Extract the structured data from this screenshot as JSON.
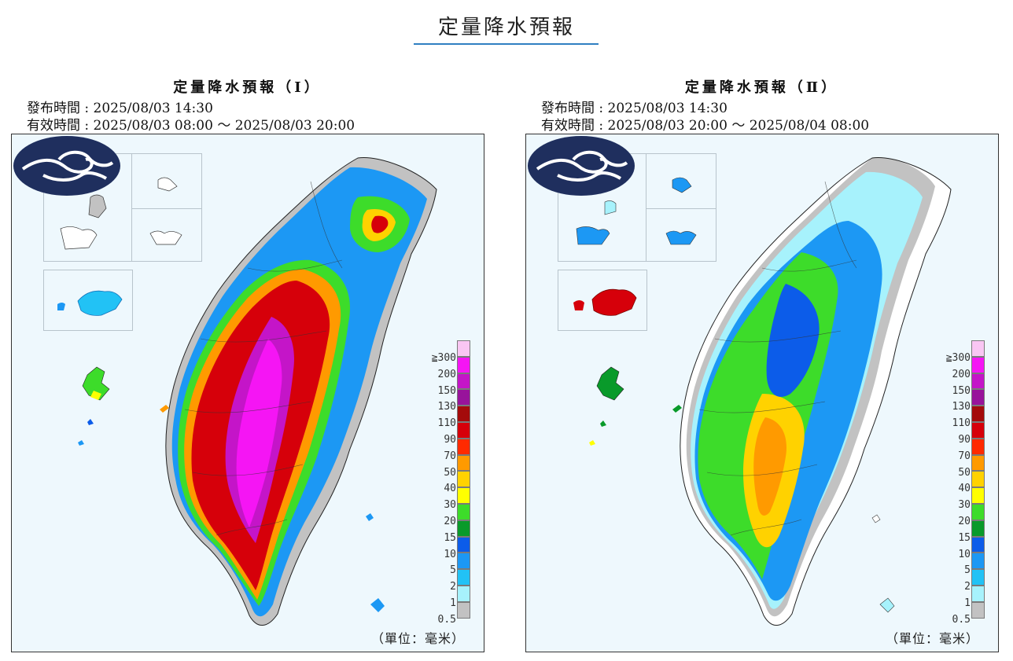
{
  "page": {
    "title": "定量降水預報"
  },
  "panels": [
    {
      "title": "定量降水預報（Ⅰ）",
      "issued": "發布時間 : 2025/08/03 14:30",
      "valid": "有效時間 : 2025/08/03 08:00 ～ 2025/08/03 20:00"
    },
    {
      "title": "定量降水預報（Ⅱ）",
      "issued": "發布時間 : 2025/08/03 14:30",
      "valid": "有效時間 : 2025/08/03 20:00 ～ 2025/08/04 08:00"
    }
  ],
  "legend": {
    "labels": [
      "≧300",
      "200",
      "150",
      "130",
      "110",
      "90",
      "70",
      "50",
      "40",
      "30",
      "20",
      "15",
      "10",
      "5",
      "2",
      "1",
      "0.5"
    ],
    "colors": [
      "#f9c6f3",
      "#f515f4",
      "#c415c8",
      "#98139b",
      "#a40b0b",
      "#d6000a",
      "#ff2a00",
      "#ff9a00",
      "#ffd200",
      "#ffff00",
      "#3ddc2a",
      "#099a2a",
      "#0c5ce9",
      "#1c98f4",
      "#22c2f5",
      "#a7f2fc",
      "#c2c2c2"
    ]
  },
  "unit": "（單位：毫米）",
  "icons": {
    "logo": "cwa-logo-icon"
  }
}
